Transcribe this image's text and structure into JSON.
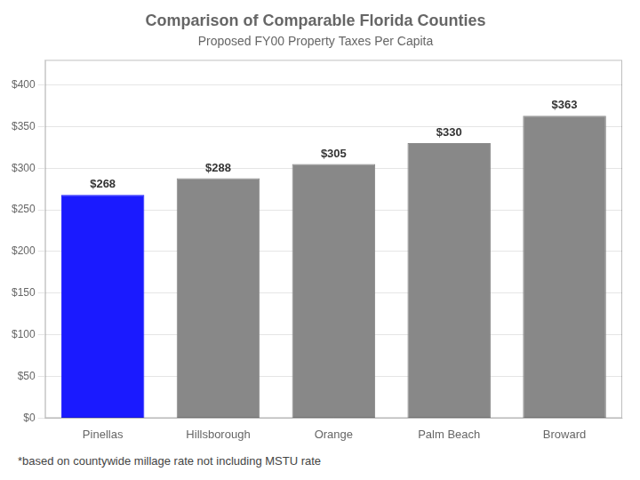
{
  "chart_data": {
    "type": "bar",
    "title": "Comparison of Comparable Florida Counties",
    "subtitle": "Proposed FY00 Property Taxes Per Capita",
    "footnote": "*based on countywide millage rate not including MSTU rate",
    "categories": [
      "Pinellas",
      "Hillsborough",
      "Orange",
      "Palm Beach",
      "Broward"
    ],
    "values": [
      268,
      288,
      305,
      330,
      363
    ],
    "value_labels": [
      "$268",
      "$288",
      "$305",
      "$330",
      "$363"
    ],
    "colors": [
      "#1a1aff",
      "#888888",
      "#888888",
      "#888888",
      "#888888"
    ],
    "data_labels": true,
    "ylim": [
      0,
      430
    ],
    "yticks": [
      {
        "value": 0,
        "label": "$0"
      },
      {
        "value": 50,
        "label": "$50"
      },
      {
        "value": 100,
        "label": "$100"
      },
      {
        "value": 150,
        "label": "$150"
      },
      {
        "value": 200,
        "label": "$200"
      },
      {
        "value": 250,
        "label": "$250"
      },
      {
        "value": 300,
        "label": "$300"
      },
      {
        "value": 350,
        "label": "$350"
      },
      {
        "value": 400,
        "label": "$400"
      }
    ],
    "grid": true
  }
}
